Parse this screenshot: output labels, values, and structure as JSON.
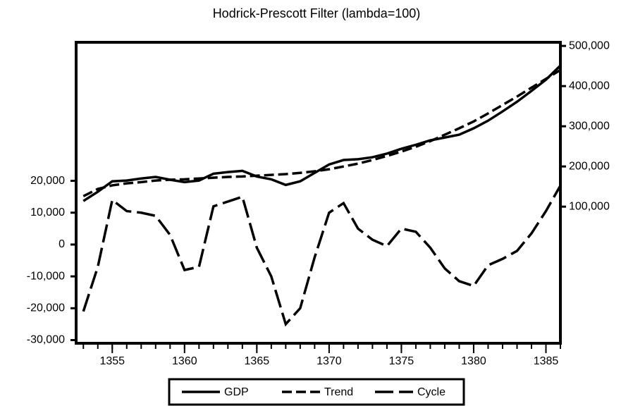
{
  "chart_data": {
    "type": "line",
    "title": "Hodrick-Prescott Filter (lambda=100)",
    "x": [
      1353,
      1354,
      1355,
      1356,
      1357,
      1358,
      1359,
      1360,
      1361,
      1362,
      1363,
      1364,
      1365,
      1366,
      1367,
      1368,
      1369,
      1370,
      1371,
      1372,
      1373,
      1374,
      1375,
      1376,
      1377,
      1378,
      1379,
      1380,
      1381,
      1382,
      1383,
      1384,
      1385,
      1386
    ],
    "xlim": [
      1352.5,
      1386
    ],
    "xticks": [
      1355,
      1360,
      1365,
      1370,
      1375,
      1380,
      1385
    ],
    "ylim": [
      -31000,
      63500
    ],
    "yticks": [
      {
        "value": -30000,
        "label": "-30,000"
      },
      {
        "value": -20000,
        "label": "-20,000"
      },
      {
        "value": -10000,
        "label": "-10,000"
      },
      0,
      {
        "value": 10000,
        "label": "10,000"
      },
      {
        "value": 20000,
        "label": "20,000"
      }
    ],
    "y2lim": [
      -240000,
      509000
    ],
    "y2ticks": [
      {
        "value": 100000,
        "label": "100,000"
      },
      {
        "value": 200000,
        "label": "200,000"
      },
      {
        "value": 300000,
        "label": "300,000"
      },
      {
        "value": 400000,
        "label": "400,000"
      },
      {
        "value": 500000,
        "label": "500,000"
      }
    ],
    "legend": "bottom",
    "series": [
      {
        "name": "GDP",
        "color": "#000000",
        "dash": "solid",
        "axis": "y2",
        "values": [
          114000,
          137000,
          163000,
          165000,
          170000,
          174000,
          167000,
          161000,
          165000,
          182000,
          186000,
          189000,
          175000,
          168000,
          154000,
          163000,
          184000,
          205000,
          216000,
          218000,
          223000,
          232000,
          244000,
          254000,
          265000,
          272000,
          279000,
          295000,
          314000,
          337000,
          361000,
          388000,
          416000,
          451000
        ]
      },
      {
        "name": "Trend",
        "color": "#000000",
        "dash": "dashed",
        "axis": "y2",
        "values": [
          126000,
          144000,
          153000,
          158000,
          161000,
          165000,
          167000,
          168000,
          170000,
          172000,
          174000,
          175000,
          177000,
          179000,
          181000,
          184000,
          188000,
          193000,
          200000,
          207000,
          216000,
          226000,
          237000,
          249000,
          263000,
          279000,
          295000,
          312000,
          332000,
          353000,
          374000,
          396000,
          418000,
          440000
        ]
      },
      {
        "name": "Cycle",
        "color": "#000000",
        "dash": "longdash",
        "values": [
          -21000,
          -7000,
          14000,
          10500,
          10000,
          9000,
          3000,
          -8000,
          -7000,
          12000,
          13500,
          15000,
          -1000,
          -10000,
          -25000,
          -20000,
          -4000,
          10000,
          13000,
          5000,
          1500,
          -500,
          5000,
          4000,
          -1000,
          -7500,
          -11500,
          -13000,
          -6500,
          -4500,
          -2000,
          3500,
          10500,
          18500
        ]
      }
    ]
  }
}
